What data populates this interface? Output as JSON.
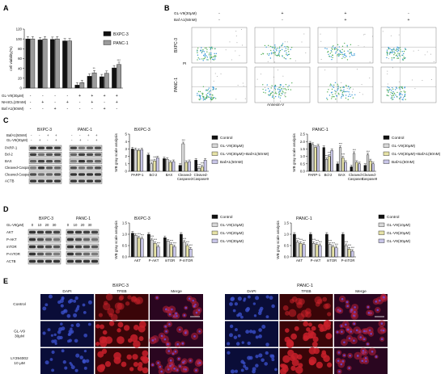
{
  "panel_labels": [
    "A",
    "B",
    "C",
    "D",
    "E"
  ],
  "panelA": {
    "ylabel": "cell viability(%)",
    "yticks": [
      "0",
      "20",
      "40",
      "60",
      "80",
      "100",
      "120"
    ],
    "treatments": [
      {
        "label": "GL-V9(30μM)",
        "marks": [
          "-",
          "-",
          "-",
          "-",
          "+",
          "+",
          "+",
          "+"
        ]
      },
      {
        "label": "NH4CL(20mM)",
        "marks": [
          "-",
          "+",
          "-",
          "+",
          "-",
          "+",
          "-",
          "+"
        ]
      },
      {
        "label": "Baf A1(50nM)",
        "marks": [
          "-",
          "-",
          "+",
          "-",
          "-",
          "-",
          "+",
          "-"
        ]
      }
    ],
    "sig": [
      "",
      "",
      "",
      "",
      "",
      "**",
      "",
      "***"
    ]
  },
  "panelB": {
    "treatments": [
      {
        "label": "GL-V9(30μM)",
        "marks": [
          "-",
          "+",
          "+",
          "-"
        ]
      },
      {
        "label": "Baf A1(50nM)",
        "marks": [
          "-",
          "-",
          "+",
          "+"
        ]
      }
    ],
    "rows": [
      "BXPC-3",
      "PANC-1"
    ],
    "ylabel": "PI",
    "xlabel": "Annexin-V"
  },
  "panelC": {
    "blot": {
      "cells": [
        "BXPC-3",
        "PANC-1"
      ],
      "treatments": [
        {
          "label": "BafA1(50nM)",
          "marks": [
            "-",
            "-",
            "+",
            "+",
            "-",
            "-",
            "+",
            "+"
          ]
        },
        {
          "label": "GL-V9(30μM)",
          "marks": [
            "-",
            "+",
            "-",
            "+",
            "-",
            "+",
            "-",
            "+"
          ]
        }
      ],
      "proteins": [
        "PARP-1",
        "Bcl-2",
        "BAX",
        "Cleaved-Caspase3",
        "Cleaved-Caspase9",
        "ACTB"
      ]
    },
    "charts": [
      {
        "title": "BXPC-3",
        "ylabel": "WB gray scale analysis",
        "yticks": [
          "0",
          "1",
          "2",
          "3",
          "4",
          "5"
        ]
      },
      {
        "title": "PANC-1",
        "ylabel": "WB gray scale analysis",
        "yticks": [
          "0.0",
          "0.5",
          "1.0",
          "1.5",
          "2.0",
          "2.5"
        ]
      }
    ],
    "categories": [
      "PARP-1",
      "Bcl-2",
      "BAX",
      "Cleaved-Caspase3",
      "Cleaved-Caspase9"
    ],
    "legend": [
      "Control",
      "GL-V9(30μM)",
      "GL-V9(30μM)+BafA1(50nM)",
      "BafA1(50nM)"
    ],
    "sig": "***"
  },
  "panelD": {
    "blot": {
      "cells": [
        "BXPC-3",
        "PANC-1"
      ],
      "dose_label": "GL-V9(μM)",
      "doses": [
        "0",
        "10",
        "20",
        "30",
        "0",
        "10",
        "20",
        "30"
      ],
      "proteins": [
        "AKT",
        "P-AKT",
        "mTOR",
        "P-mTOR",
        "ACTB"
      ]
    },
    "charts": [
      {
        "title": "BXPC-3",
        "ylabel": "WB gray scale analysis",
        "yticks": [
          "0.0",
          "0.5",
          "1.0",
          "1.5"
        ]
      },
      {
        "title": "PANC-1",
        "ylabel": "WB gray scale analysis",
        "yticks": [
          "0.0",
          "0.5",
          "1.0",
          "1.5"
        ]
      }
    ],
    "categories": [
      "AKT",
      "P-AKT",
      "mTOR",
      "P-mTOR"
    ],
    "legend": [
      "Control",
      "GL-V9(10μM)",
      "GL-V9(20μM)",
      "GL-V9(30μM)"
    ],
    "sig": "***"
  },
  "panelE": {
    "groups": [
      "BXPC-3",
      "PANC-1"
    ],
    "columns": [
      "DAPI",
      "TFEB",
      "Merge"
    ],
    "rows": [
      "Control",
      "GL-V9\n30μM",
      "LY294002\n10 μM"
    ]
  },
  "colors": {
    "black": "#111111",
    "grey": "#9a9a9a",
    "light": "#d8d8d8",
    "yellowish": "#e6e2a6",
    "lavender": "#c9c6e8",
    "olive": "#c3c790",
    "dapi_bg": "#0a0d38",
    "tfeb_bg": "#3a0508"
  },
  "chart_data": [
    {
      "panel": "A",
      "type": "bar",
      "categories": [
        "1",
        "2",
        "3",
        "4",
        "5",
        "6",
        "7",
        "8"
      ],
      "ylabel": "cell viability(%)",
      "ylim": [
        0,
        120
      ],
      "series": [
        {
          "name": "BXPC-3",
          "values": [
            100,
            98,
            99,
            96,
            6,
            24,
            23,
            41
          ]
        },
        {
          "name": "PANC-1",
          "values": [
            100,
            100,
            100,
            96,
            11,
            31,
            30,
            48
          ]
        }
      ],
      "legend": "top-right"
    },
    {
      "panel": "C-BXPC-3",
      "type": "bar",
      "title": "BXPC-3",
      "ylabel": "WB gray scale analysis",
      "ylim": [
        0,
        5
      ],
      "categories": [
        "PARP-1",
        "Bcl-2",
        "BAX",
        "Cleaved-Caspase3",
        "Cleaved-Caspase9"
      ],
      "series": [
        {
          "name": "Control",
          "values": [
            3.0,
            2.2,
            1.7,
            0.8,
            1.5
          ]
        },
        {
          "name": "GL-V9(30μM)",
          "values": [
            2.9,
            1.0,
            1.6,
            3.7,
            0.4
          ]
        },
        {
          "name": "GL-V9(30μM)+BafA1(50nM)",
          "values": [
            2.8,
            1.4,
            1.2,
            1.2,
            0.6
          ]
        },
        {
          "name": "BafA1(50nM)",
          "values": [
            2.9,
            1.8,
            1.3,
            1.3,
            1.5
          ]
        }
      ],
      "legend": "right"
    },
    {
      "panel": "C-PANC-1",
      "type": "bar",
      "title": "PANC-1",
      "ylabel": "WB gray scale analysis",
      "ylim": [
        0,
        2.5
      ],
      "categories": [
        "PARP-1",
        "Bcl-2",
        "BAX",
        "Cleaved-Caspase3",
        "Cleaved-Caspase9"
      ],
      "series": [
        {
          "name": "Control",
          "values": [
            1.9,
            1.6,
            0.5,
            0.3,
            0.4
          ]
        },
        {
          "name": "GL-V9(30μM)",
          "values": [
            1.8,
            0.8,
            1.6,
            1.2,
            1.1
          ]
        },
        {
          "name": "GL-V9(30μM)+BafA1(50nM)",
          "values": [
            1.6,
            1.0,
            0.9,
            0.6,
            0.7
          ]
        },
        {
          "name": "BafA1(50nM)",
          "values": [
            1.7,
            1.4,
            0.6,
            0.5,
            0.5
          ]
        }
      ],
      "legend": "right"
    },
    {
      "panel": "D-BXPC-3",
      "type": "bar",
      "title": "BXPC-3",
      "ylabel": "WB gray scale analysis",
      "ylim": [
        0,
        1.5
      ],
      "categories": [
        "AKT",
        "P-AKT",
        "mTOR",
        "P-mTOR"
      ],
      "series": [
        {
          "name": "Control",
          "values": [
            1.05,
            1.0,
            0.85,
            1.0
          ]
        },
        {
          "name": "GL-V9(10μM)",
          "values": [
            0.95,
            0.75,
            0.7,
            0.65
          ]
        },
        {
          "name": "GL-V9(20μM)",
          "values": [
            0.85,
            0.6,
            0.55,
            0.5
          ]
        },
        {
          "name": "GL-V9(30μM)",
          "values": [
            0.8,
            0.45,
            0.45,
            0.35
          ]
        }
      ],
      "legend": "right"
    },
    {
      "panel": "D-PANC-1",
      "type": "bar",
      "title": "PANC-1",
      "ylabel": "WB gray scale analysis",
      "ylim": [
        0,
        1.5
      ],
      "categories": [
        "AKT",
        "P-AKT",
        "mTOR",
        "P-mTOR"
      ],
      "series": [
        {
          "name": "Control",
          "values": [
            1.0,
            1.0,
            1.0,
            1.0
          ]
        },
        {
          "name": "GL-V9(10μM)",
          "values": [
            0.65,
            0.6,
            0.55,
            0.5
          ]
        },
        {
          "name": "GL-V9(20μM)",
          "values": [
            0.6,
            0.55,
            0.45,
            0.35
          ]
        },
        {
          "name": "GL-V9(30μM)",
          "values": [
            0.55,
            0.5,
            0.4,
            0.25
          ]
        }
      ],
      "legend": "right"
    }
  ]
}
